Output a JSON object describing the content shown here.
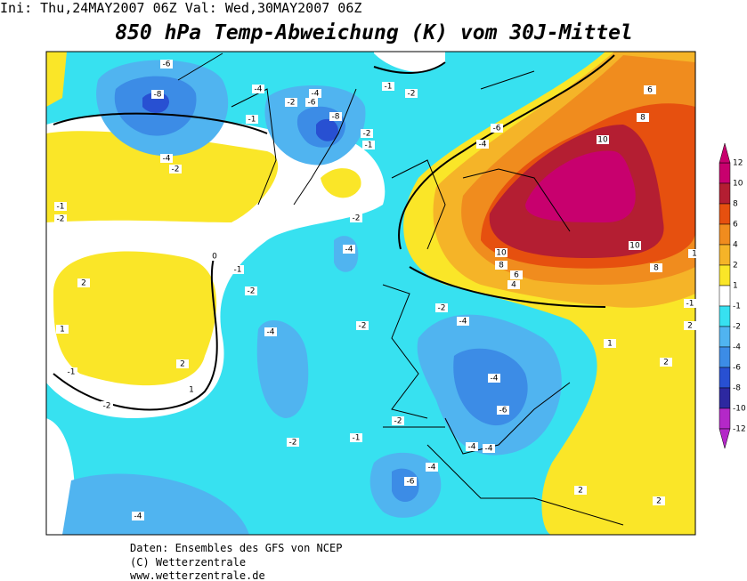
{
  "header": {
    "init": "Ini: Thu,24MAY2007 06Z Val: Wed,30MAY2007 06Z",
    "title": "850 hPa Temp-Abweichung (K) vom 30J-Mittel"
  },
  "legend": {
    "labels": [
      12,
      10,
      8,
      6,
      4,
      2,
      1,
      -1,
      -2,
      -4,
      -6,
      -8,
      -10,
      -12
    ],
    "colors": [
      "#c8006e",
      "#b41e32",
      "#e6500f",
      "#f08c1e",
      "#f5b428",
      "#fae628",
      "#ffffff",
      "#37e1f0",
      "#50b4f0",
      "#3c8ce6",
      "#2850d2",
      "#2d28a0",
      "#b428c8"
    ]
  },
  "map": {
    "labels": [
      -6,
      -8,
      -4,
      -2,
      -6,
      -4,
      -8,
      -1,
      -2,
      -4,
      -6,
      6,
      8,
      10,
      10,
      10,
      8,
      8,
      6,
      4,
      -1,
      -2,
      -1,
      -2,
      -4,
      -1,
      -2,
      2,
      1,
      2,
      1,
      -1,
      -2,
      -4,
      -2,
      -1,
      0,
      -4,
      -2,
      -2,
      -4,
      -2,
      -4,
      -6,
      -2,
      -2,
      -1,
      -4,
      -4,
      -4,
      -6,
      -4,
      2,
      2,
      1,
      2,
      2,
      -1,
      1
    ]
  },
  "footer": {
    "line1": "Daten: Ensembles des GFS von NCEP",
    "line2": "(C) Wetterzentrale",
    "line3": "www.wetterzentrale.de"
  }
}
